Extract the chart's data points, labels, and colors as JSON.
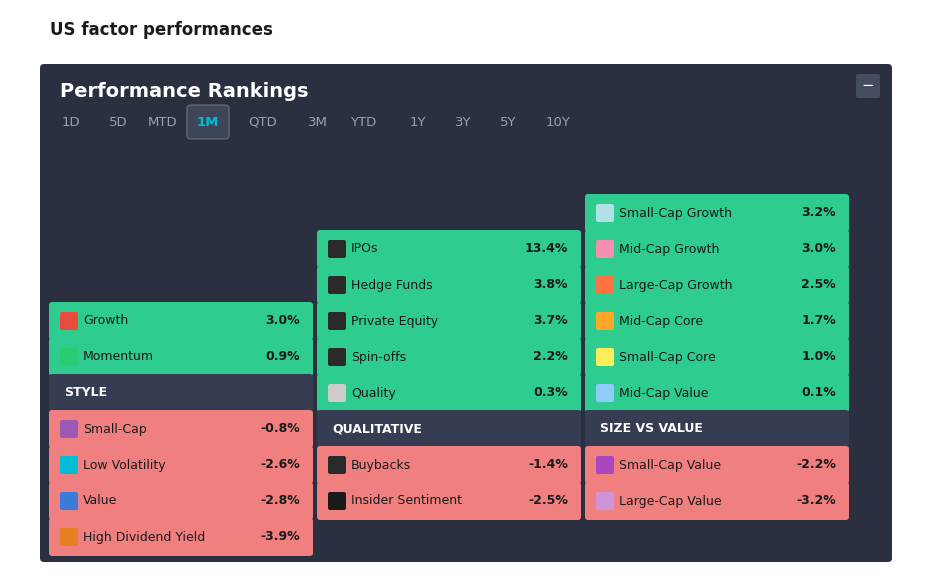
{
  "title": "US factor performances",
  "panel_title": "Performance Rankings",
  "bg_color": "#2b3040",
  "green_card": "#2ecc8e",
  "pink_card": "#f08080",
  "dark_header_card": "#363d52",
  "tabs": [
    "1D",
    "5D",
    "MTD",
    "1M",
    "QTD",
    "3M",
    "YTD",
    "1Y",
    "3Y",
    "5Y",
    "10Y"
  ],
  "active_tab": "1M",
  "col1_header": "STYLE",
  "col2_header": "QUALITATIVE",
  "col3_header": "SIZE VS VALUE",
  "col1_items": [
    {
      "label": "Growth",
      "value": "3.0%",
      "icon_color": "#e74c3c",
      "positive": true
    },
    {
      "label": "Momentum",
      "value": "0.9%",
      "icon_color": "#2ecc71",
      "positive": true
    },
    {
      "label": "Small-Cap",
      "value": "-0.8%",
      "icon_color": "#9b59b6",
      "positive": false
    },
    {
      "label": "Low Volatility",
      "value": "-2.6%",
      "icon_color": "#00bcd4",
      "positive": false
    },
    {
      "label": "Value",
      "value": "-2.8%",
      "icon_color": "#3a7bd5",
      "positive": false
    },
    {
      "label": "High Dividend Yield",
      "value": "-3.9%",
      "icon_color": "#e67e22",
      "positive": false
    }
  ],
  "col2_items": [
    {
      "label": "IPOs",
      "value": "13.4%",
      "icon_color": "#2a2a2a",
      "positive": true
    },
    {
      "label": "Hedge Funds",
      "value": "3.8%",
      "icon_color": "#2a2a2a",
      "positive": true
    },
    {
      "label": "Private Equity",
      "value": "3.7%",
      "icon_color": "#2a2a2a",
      "positive": true
    },
    {
      "label": "Spin-offs",
      "value": "2.2%",
      "icon_color": "#2a2a2a",
      "positive": true
    },
    {
      "label": "Quality",
      "value": "0.3%",
      "icon_color": "#cccccc",
      "positive": true
    },
    {
      "label": "Buybacks",
      "value": "-1.4%",
      "icon_color": "#2a2a2a",
      "positive": false
    },
    {
      "label": "Insider Sentiment",
      "value": "-2.5%",
      "icon_color": "#1a1a1a",
      "positive": false
    }
  ],
  "col3_items": [
    {
      "label": "Small-Cap Growth",
      "value": "3.2%",
      "icon_color": "#b0e0e6",
      "positive": true
    },
    {
      "label": "Mid-Cap Growth",
      "value": "3.0%",
      "icon_color": "#f48fb1",
      "positive": true
    },
    {
      "label": "Large-Cap Growth",
      "value": "2.5%",
      "icon_color": "#ff7043",
      "positive": true
    },
    {
      "label": "Mid-Cap Core",
      "value": "1.7%",
      "icon_color": "#ffa726",
      "positive": true
    },
    {
      "label": "Small-Cap Core",
      "value": "1.0%",
      "icon_color": "#ffee58",
      "positive": true
    },
    {
      "label": "Mid-Cap Value",
      "value": "0.1%",
      "icon_color": "#90caf9",
      "positive": true
    },
    {
      "label": "Small-Cap Value",
      "value": "-2.2%",
      "icon_color": "#ab47bc",
      "positive": false
    },
    {
      "label": "Large-Cap Value",
      "value": "-3.2%",
      "icon_color": "#ce93d8",
      "positive": false
    }
  ]
}
